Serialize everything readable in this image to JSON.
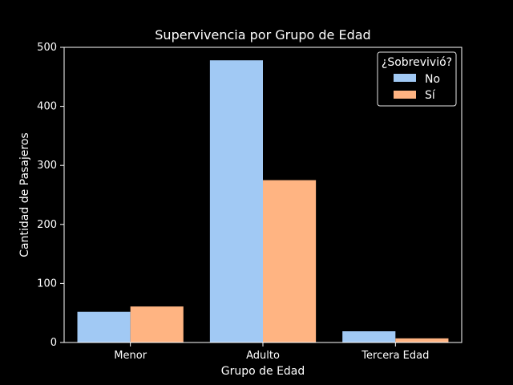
{
  "chart_data": {
    "type": "bar",
    "title": "Supervivencia por Grupo de Edad",
    "xlabel": "Grupo de Edad",
    "ylabel": "Cantidad de Pasajeros",
    "categories": [
      "Menor",
      "Adulto",
      "Tercera Edad"
    ],
    "ylim": [
      0,
      500
    ],
    "yticks": [
      0,
      100,
      200,
      300,
      400,
      500
    ],
    "grid": false,
    "legend": {
      "title": "¿Sobrevivió?",
      "placement": "top-right"
    },
    "series": [
      {
        "name": "No",
        "color": "#a1c9f4",
        "values": [
          52,
          478,
          19
        ]
      },
      {
        "name": "Sí",
        "color": "#ffb482",
        "values": [
          61,
          275,
          7
        ]
      }
    ]
  }
}
